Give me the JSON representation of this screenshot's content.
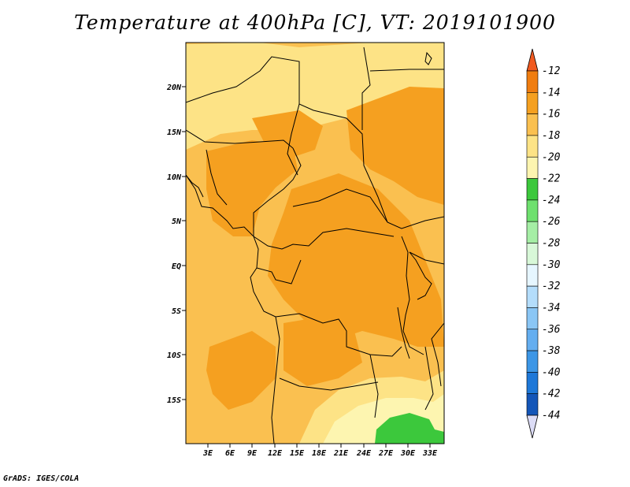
{
  "title": "Temperature at 400hPa [C], VT: 2019101900",
  "credit": "GrADS: IGES/COLA",
  "lat_labels": [
    "20N",
    "15N",
    "10N",
    "5N",
    "EQ",
    "5S",
    "10S",
    "15S"
  ],
  "lon_labels": [
    "3E",
    "6E",
    "9E",
    "12E",
    "15E",
    "18E",
    "21E",
    "24E",
    "27E",
    "30E",
    "33E"
  ],
  "colorbar": {
    "labels": [
      "-12",
      "-14",
      "-16",
      "-18",
      "-20",
      "-22",
      "-24",
      "-26",
      "-28",
      "-30",
      "-32",
      "-34",
      "-36",
      "-38",
      "-40",
      "-42",
      "-44"
    ],
    "colors": [
      "#f05a20",
      "#f07d10",
      "#f5a020",
      "#fac050",
      "#fde386",
      "#fdf5b0",
      "#3cc83c",
      "#6ee06e",
      "#a5eea5",
      "#d8f8d8",
      "#e6f6ff",
      "#b4ddfb",
      "#8ac6f5",
      "#64aef0",
      "#3c96e6",
      "#1e78d8",
      "#1456b8",
      "#0c2c8c",
      "#080a64",
      "#dcdcf6"
    ]
  },
  "fill_colors": {
    "warm": "#f5a020",
    "light": "#fac050",
    "pale": "#fde386",
    "cream": "#fdf5b0",
    "green": "#3cc83c"
  }
}
